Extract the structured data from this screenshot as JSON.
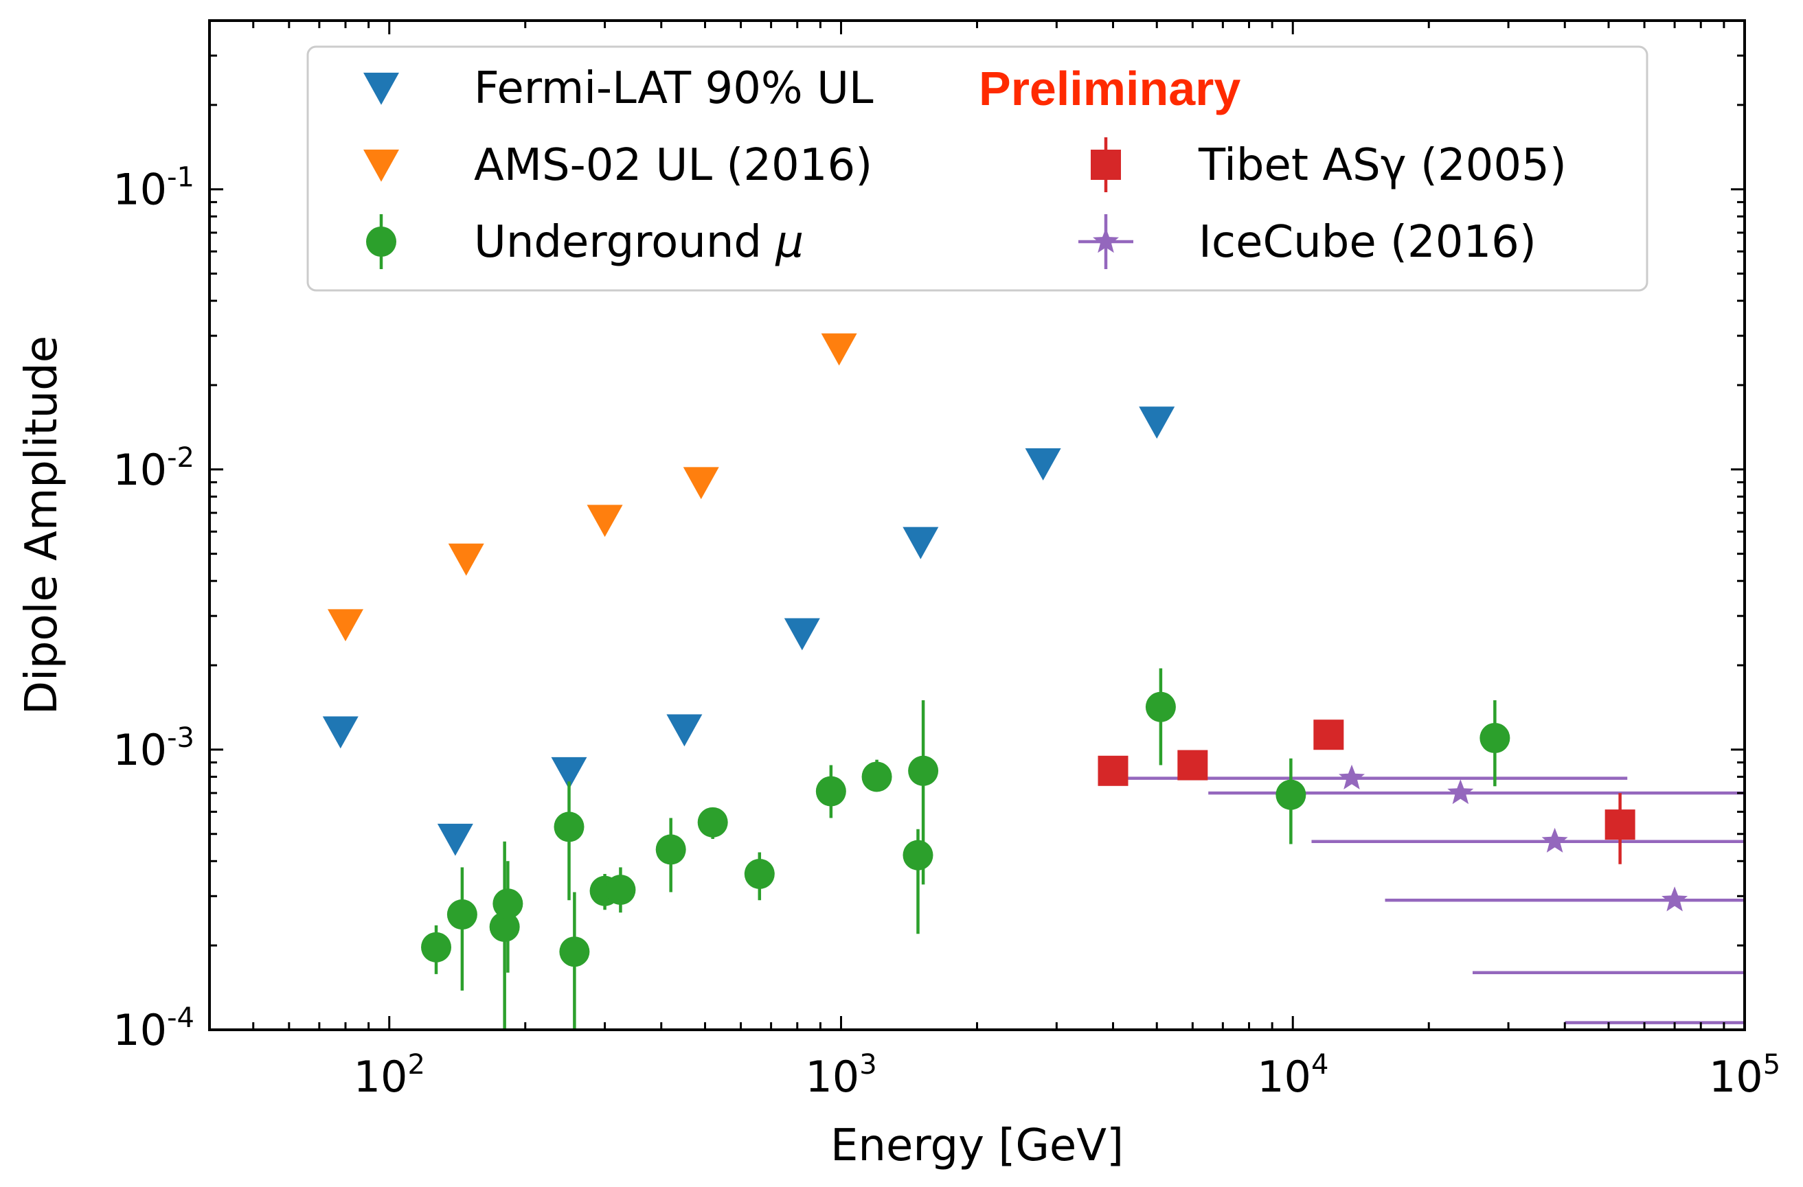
{
  "chart_data": {
    "type": "scatter",
    "xscale": "log",
    "yscale": "log",
    "xlim": [
      40,
      100000
    ],
    "ylim": [
      0.0001,
      0.4
    ],
    "xlabel": "Energy [GeV]",
    "ylabel": "Dipole Amplitude",
    "annotation": "Preliminary",
    "x_ticks": [
      {
        "value": 100,
        "base": "10",
        "exp": "2"
      },
      {
        "value": 1000,
        "base": "10",
        "exp": "3"
      },
      {
        "value": 10000,
        "base": "10",
        "exp": "4"
      },
      {
        "value": 100000,
        "base": "10",
        "exp": "5"
      }
    ],
    "y_ticks": [
      {
        "value": 0.0001,
        "base": "10",
        "exp": "-4"
      },
      {
        "value": 0.001,
        "base": "10",
        "exp": "-3"
      },
      {
        "value": 0.01,
        "base": "10",
        "exp": "-2"
      },
      {
        "value": 0.1,
        "base": "10",
        "exp": "-1"
      }
    ],
    "series": [
      {
        "name": "Fermi-LAT 90% UL",
        "color": "#1f77b4",
        "marker": "triangle-down",
        "points": [
          {
            "x": 78,
            "y": 0.00116
          },
          {
            "x": 140,
            "y": 0.00048
          },
          {
            "x": 250,
            "y": 0.00083
          },
          {
            "x": 450,
            "y": 0.00118
          },
          {
            "x": 820,
            "y": 0.0026
          },
          {
            "x": 1500,
            "y": 0.0055
          },
          {
            "x": 2800,
            "y": 0.0105
          },
          {
            "x": 5000,
            "y": 0.0148
          }
        ]
      },
      {
        "name": "AMS-02 UL (2016)",
        "color": "#ff7f0e",
        "marker": "triangle-down",
        "points": [
          {
            "x": 80,
            "y": 0.0028
          },
          {
            "x": 148,
            "y": 0.0048
          },
          {
            "x": 300,
            "y": 0.0066
          },
          {
            "x": 490,
            "y": 0.009
          },
          {
            "x": 990,
            "y": 0.027
          }
        ]
      },
      {
        "name": "Underground μ",
        "label_text": "Underground",
        "label_symbol": "μ",
        "color": "#2ca02c",
        "marker": "circle",
        "points": [
          {
            "x": 127,
            "y": 0.000197,
            "ylo": 0.000158,
            "yhi": 0.000236
          },
          {
            "x": 145,
            "y": 0.000258,
            "ylo": 0.000138,
            "yhi": 0.00038
          },
          {
            "x": 180,
            "y": 0.000233,
            "ylo": 0.0001,
            "yhi": 0.00047
          },
          {
            "x": 183,
            "y": 0.000282,
            "ylo": 0.00016,
            "yhi": 0.0004
          },
          {
            "x": 250,
            "y": 0.00053,
            "ylo": 0.00029,
            "yhi": 0.00077
          },
          {
            "x": 257,
            "y": 0.00019,
            "ylo": 0.0001,
            "yhi": 0.00031
          },
          {
            "x": 300,
            "y": 0.000313,
            "ylo": 0.000268,
            "yhi": 0.00036
          },
          {
            "x": 325,
            "y": 0.000316,
            "ylo": 0.000262,
            "yhi": 0.00038
          },
          {
            "x": 420,
            "y": 0.00044,
            "ylo": 0.00031,
            "yhi": 0.00057
          },
          {
            "x": 520,
            "y": 0.00055,
            "ylo": 0.00048,
            "yhi": 0.00062
          },
          {
            "x": 660,
            "y": 0.00036,
            "ylo": 0.00029,
            "yhi": 0.00043
          },
          {
            "x": 950,
            "y": 0.00071,
            "ylo": 0.00057,
            "yhi": 0.00088
          },
          {
            "x": 1200,
            "y": 0.0008,
            "ylo": 0.00071,
            "yhi": 0.00092
          },
          {
            "x": 1480,
            "y": 0.00042,
            "ylo": 0.00022,
            "yhi": 0.00052
          },
          {
            "x": 1520,
            "y": 0.00084,
            "ylo": 0.00033,
            "yhi": 0.0015
          },
          {
            "x": 5100,
            "y": 0.00142,
            "ylo": 0.00088,
            "yhi": 0.00195
          },
          {
            "x": 9900,
            "y": 0.00069,
            "ylo": 0.00046,
            "yhi": 0.00093
          },
          {
            "x": 28000,
            "y": 0.0011,
            "ylo": 0.00074,
            "yhi": 0.0015
          }
        ]
      },
      {
        "name": "Tibet ASγ (2005)",
        "color": "#d62728",
        "marker": "square",
        "points": [
          {
            "x": 4000,
            "y": 0.00084
          },
          {
            "x": 6000,
            "y": 0.00088
          },
          {
            "x": 12000,
            "y": 0.00113
          },
          {
            "x": 53000,
            "y": 0.00054,
            "ylo": 0.00039,
            "yhi": 0.0007
          }
        ]
      },
      {
        "name": "IceCube (2016)",
        "color": "#9467bd",
        "marker": "star",
        "points": [
          {
            "x": 13500,
            "y": 0.00079,
            "xlo": 4000,
            "xhi": 55000
          },
          {
            "x": 23500,
            "y": 0.0007,
            "xlo": 6500,
            "xhi": 100000
          },
          {
            "x": 38000,
            "y": 0.00047,
            "xlo": 11000,
            "xhi": 100000
          },
          {
            "x": 70000,
            "y": 0.00029,
            "xlo": 16000,
            "xhi": 100000
          },
          {
            "x": null,
            "y": 0.00016,
            "xlo": 25000,
            "xhi": 100000
          },
          {
            "x": null,
            "y": 0.000106,
            "xlo": 40000,
            "xhi": 100000
          }
        ]
      }
    ]
  }
}
